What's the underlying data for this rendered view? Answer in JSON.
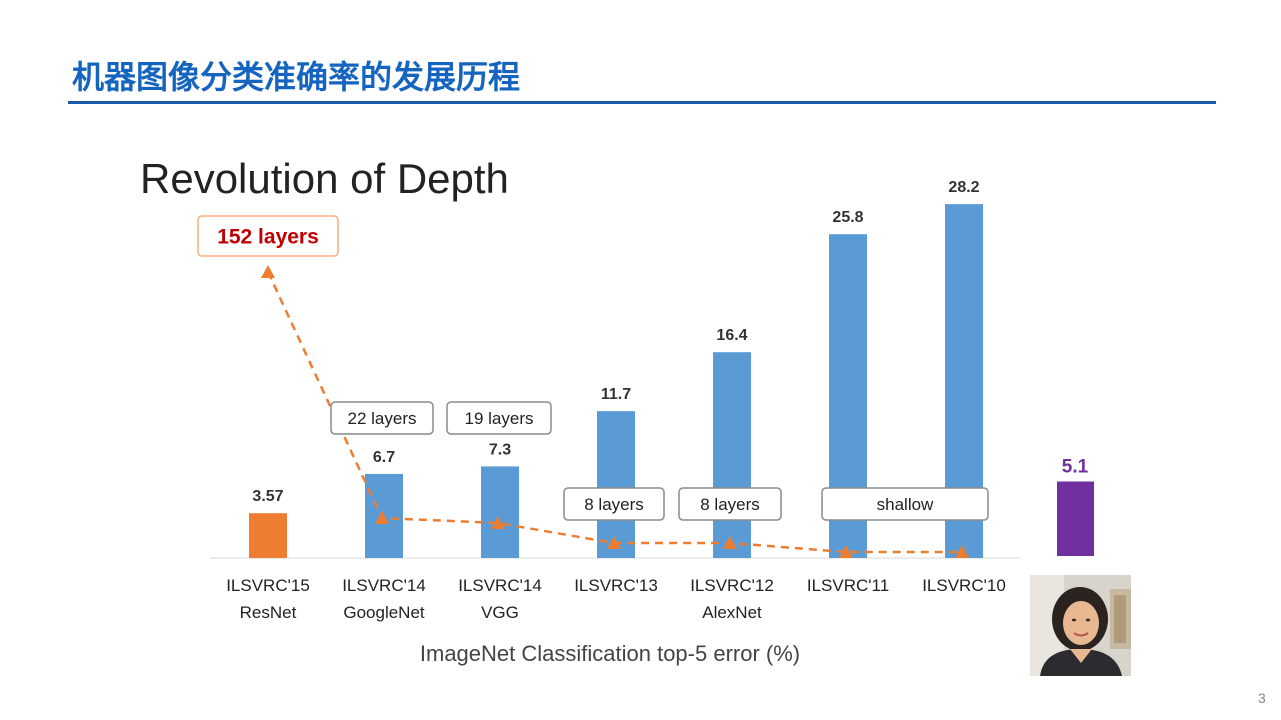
{
  "slide": {
    "title": "机器图像分类准确率的发展历程",
    "number": "3"
  },
  "colors": {
    "title_blue": "#1565c0",
    "bar_blue": "#5b9bd5",
    "bar_orange": "#ed7d31",
    "bar_purple": "#7030a0",
    "trend_orange": "#ed7d31",
    "highlight_red": "#c00000"
  },
  "chart_data": [
    {
      "type": "bar",
      "title": "Revolution of Depth",
      "xlabel": "ImageNet Classification top-5 error (%)",
      "categories": [
        [
          "ILSVRC'15",
          "ResNet"
        ],
        [
          "ILSVRC'14",
          "GoogleNet"
        ],
        [
          "ILSVRC'14",
          "VGG"
        ],
        [
          "ILSVRC'13",
          ""
        ],
        [
          "ILSVRC'12",
          "AlexNet"
        ],
        [
          "ILSVRC'11",
          ""
        ],
        [
          "ILSVRC'10",
          ""
        ]
      ],
      "values": [
        3.57,
        6.7,
        7.3,
        11.7,
        16.4,
        25.8,
        28.2
      ],
      "value_labels": [
        "3.57",
        "6.7",
        "7.3",
        "11.7",
        "16.4",
        "25.8",
        "28.2"
      ],
      "bar_colors": [
        "#ed7d31",
        "#5b9bd5",
        "#5b9bd5",
        "#5b9bd5",
        "#5b9bd5",
        "#5b9bd5",
        "#5b9bd5"
      ],
      "depth_series": {
        "style": "dashed-line-with-triangle-markers",
        "color": "#ed7d31",
        "values": [
          152,
          22,
          19,
          8,
          8,
          0,
          0
        ]
      },
      "layer_labels": [
        "152 layers",
        "22 layers",
        "19 layers",
        "8 layers",
        "8 layers",
        "shallow"
      ],
      "ylim": [
        0,
        30
      ],
      "grid": false,
      "legend": "none"
    },
    {
      "type": "bar",
      "categories": [
        ""
      ],
      "values": [
        5.1
      ],
      "value_labels": [
        "5.1"
      ],
      "bar_colors": [
        "#7030a0"
      ]
    }
  ],
  "photo": {
    "description_icon": "person-photo"
  }
}
